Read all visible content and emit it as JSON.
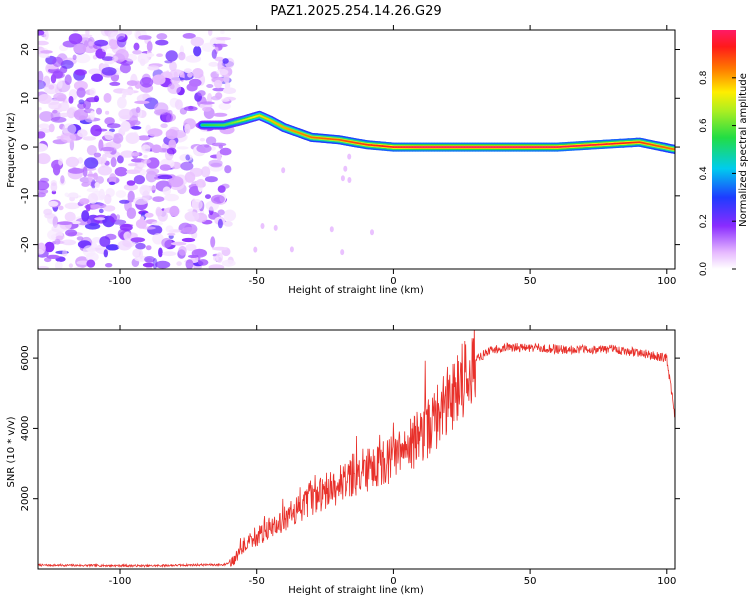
{
  "title": "PAZ1.2025.254.14.26.G29",
  "chart_data": [
    {
      "type": "heatmap",
      "title": "PAZ1.2025.254.14.26.G29",
      "xlabel": "Height of straight line (km)",
      "ylabel": "Frequency (Hz)",
      "xlim": [
        -130,
        103
      ],
      "ylim": [
        -25,
        24
      ],
      "xticks": [
        -100,
        -50,
        0,
        50,
        100
      ],
      "yticks": [
        20,
        10,
        0,
        -10,
        -20
      ],
      "colorbar": {
        "label": "Normalized spectral amplitude",
        "range": [
          0,
          1
        ],
        "ticks": [
          "0.0",
          "0.2",
          "0.4",
          "0.6",
          "0.8"
        ]
      },
      "noise_region_km": [
        -130,
        -62
      ],
      "ridge_centerline": [
        {
          "x": -70,
          "y": 4.5
        },
        {
          "x": -62,
          "y": 4.5
        },
        {
          "x": -55,
          "y": 5.5
        },
        {
          "x": -49,
          "y": 6.5
        },
        {
          "x": -45,
          "y": 5.5
        },
        {
          "x": -40,
          "y": 4.0
        },
        {
          "x": -35,
          "y": 3.0
        },
        {
          "x": -30,
          "y": 2.0
        },
        {
          "x": -20,
          "y": 1.5
        },
        {
          "x": -10,
          "y": 0.5
        },
        {
          "x": 0,
          "y": 0.0
        },
        {
          "x": 20,
          "y": 0.0
        },
        {
          "x": 40,
          "y": 0.0
        },
        {
          "x": 60,
          "y": 0.0
        },
        {
          "x": 75,
          "y": 0.5
        },
        {
          "x": 90,
          "y": 1.0
        },
        {
          "x": 103,
          "y": -0.5
        }
      ],
      "ridge_strength": [
        {
          "x": -70,
          "a": 0.55
        },
        {
          "x": -60,
          "a": 0.6
        },
        {
          "x": -50,
          "a": 0.75
        },
        {
          "x": -30,
          "a": 0.85
        },
        {
          "x": -10,
          "a": 0.9
        },
        {
          "x": 10,
          "a": 1.0
        },
        {
          "x": 50,
          "a": 1.0
        },
        {
          "x": 80,
          "a": 0.95
        },
        {
          "x": 103,
          "a": 0.85
        }
      ]
    },
    {
      "type": "line",
      "xlabel": "Height of straight line (km)",
      "ylabel": "SNR (10 * v/v)",
      "xlim": [
        -130,
        103
      ],
      "ylim": [
        0,
        6800
      ],
      "xticks": [
        -100,
        -50,
        0,
        50,
        100
      ],
      "yticks": [
        2000,
        4000,
        6000
      ],
      "series": [
        {
          "name": "SNR",
          "color": "#e8302a",
          "x": [
            -130,
            -110,
            -90,
            -70,
            -62,
            -58,
            -55,
            -50,
            -45,
            -40,
            -35,
            -30,
            -25,
            -20,
            -15,
            -10,
            -5,
            0,
            5,
            10,
            15,
            20,
            25,
            30,
            35,
            40,
            50,
            60,
            70,
            80,
            90,
            100,
            103
          ],
          "y": [
            110,
            100,
            90,
            120,
            120,
            250,
            650,
            900,
            1200,
            1400,
            1700,
            2000,
            2200,
            2400,
            2600,
            2800,
            2950,
            3150,
            3450,
            3750,
            4250,
            4800,
            5400,
            5950,
            6200,
            6300,
            6300,
            6250,
            6250,
            6250,
            6150,
            6000,
            4300
          ]
        }
      ]
    }
  ]
}
